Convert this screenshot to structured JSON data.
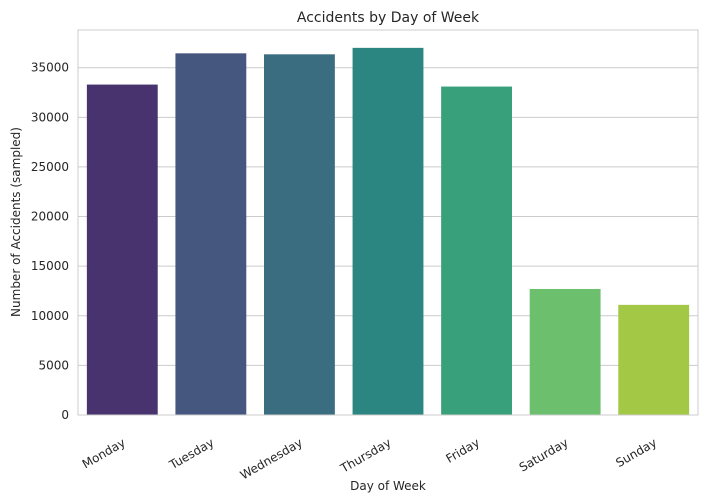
{
  "chart_data": {
    "type": "bar",
    "title": "Accidents by Day of Week",
    "xlabel": "Day of Week",
    "ylabel": "Number of Accidents (sampled)",
    "categories": [
      "Monday",
      "Tuesday",
      "Wednesday",
      "Thursday",
      "Friday",
      "Saturday",
      "Sunday"
    ],
    "values": [
      33300,
      36450,
      36350,
      37000,
      33100,
      12700,
      11100
    ],
    "colors": [
      "#48336f",
      "#45577f",
      "#3a6d80",
      "#2b8581",
      "#38a07a",
      "#6bbf6d",
      "#a2c845"
    ],
    "ylim": [
      0,
      38800
    ],
    "yticks": [
      0,
      5000,
      10000,
      15000,
      20000,
      25000,
      30000,
      35000
    ],
    "ytick_labels": [
      "0",
      "5000",
      "10000",
      "15000",
      "20000",
      "25000",
      "30000",
      "35000"
    ],
    "grid": "horizontal",
    "legend": "none"
  }
}
